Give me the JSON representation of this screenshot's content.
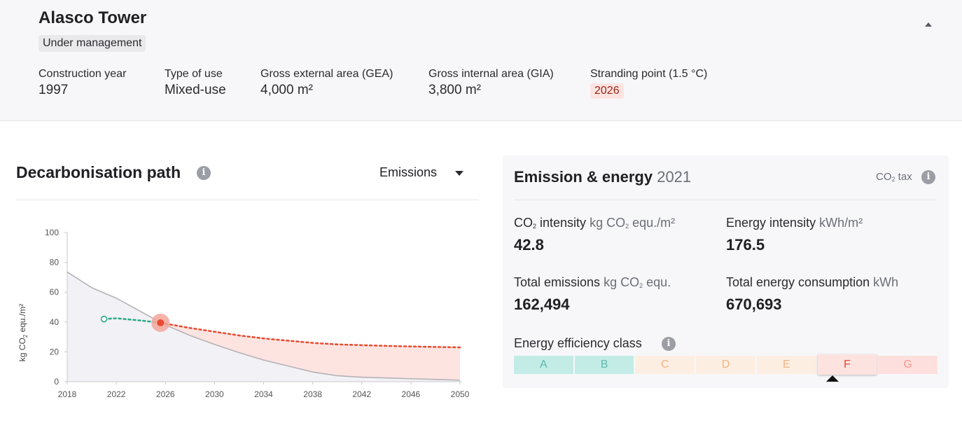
{
  "header": {
    "title": "Alasco Tower",
    "status": "Under management",
    "meta": [
      {
        "label": "Construction year",
        "value": "1997"
      },
      {
        "label": "Type of use",
        "value": "Mixed-use"
      },
      {
        "label": "Gross external area (GEA)",
        "value": "4,000 m²"
      },
      {
        "label": "Gross internal area (GIA)",
        "value": "3,800 m²"
      },
      {
        "label": "Stranding point (1.5 °C)",
        "value": "2026"
      }
    ]
  },
  "decarb": {
    "title": "Decarbonisation path",
    "dropdown_value": "Emissions"
  },
  "chart_data": {
    "type": "line",
    "ylabel_parts": {
      "pre": "kg CO",
      "sub": "2",
      "post": " equ./m²"
    },
    "xlim": [
      2018,
      2050
    ],
    "ylim": [
      0,
      100
    ],
    "x_ticks": [
      2018,
      2022,
      2026,
      2030,
      2034,
      2038,
      2042,
      2046,
      2050
    ],
    "y_ticks": [
      0,
      20,
      40,
      60,
      80,
      100
    ],
    "grid": false,
    "series": [
      {
        "color": "#b5b1b6",
        "points": [
          [
            2018,
            73.5
          ],
          [
            2020,
            63
          ],
          [
            2022,
            56
          ],
          [
            2024,
            47
          ],
          [
            2026,
            38
          ],
          [
            2028,
            31
          ],
          [
            2030,
            25
          ],
          [
            2032,
            19.5
          ],
          [
            2034,
            14.5
          ],
          [
            2036,
            10.5
          ],
          [
            2038,
            6.5
          ],
          [
            2040,
            4
          ],
          [
            2042,
            3
          ],
          [
            2044,
            2.5
          ],
          [
            2046,
            2
          ],
          [
            2048,
            1.5
          ],
          [
            2050,
            1
          ]
        ]
      },
      {
        "color": "#2aa88a",
        "dashed": true,
        "points": [
          [
            2021,
            42
          ],
          [
            2022,
            42.5
          ],
          [
            2024,
            41
          ],
          [
            2025.6,
            39.5
          ]
        ]
      },
      {
        "color": "#e8492f",
        "dashed": true,
        "points": [
          [
            2025.6,
            39.5
          ],
          [
            2028,
            36
          ],
          [
            2030,
            33.5
          ],
          [
            2032,
            31
          ],
          [
            2034,
            29
          ],
          [
            2036,
            27.5
          ],
          [
            2038,
            26
          ],
          [
            2040,
            25
          ],
          [
            2042,
            24.5
          ],
          [
            2044,
            24
          ],
          [
            2046,
            23.6
          ],
          [
            2048,
            23.3
          ],
          [
            2050,
            23
          ]
        ]
      }
    ],
    "markers": {
      "start": [
        2021,
        42
      ],
      "stranding": [
        2025.6,
        39.5
      ]
    }
  },
  "panel": {
    "title": "Emission & energy",
    "year": "2021",
    "co2tax_pre": "CO",
    "co2tax_sub": "2",
    "co2tax_post": " tax",
    "co2_intensity": {
      "pre": "CO",
      "sub": "2",
      "post": " intensity",
      "unit_pre": "kg CO",
      "unit_sub": "2",
      "unit_post": " equ./m²",
      "value": "42.8"
    },
    "energy_intensity": {
      "label": "Energy intensity",
      "unit": "kWh/m²",
      "value": "176.5"
    },
    "total_emissions": {
      "label": "Total emissions",
      "unit_pre": "kg CO",
      "unit_sub": "2",
      "unit_post": " equ.",
      "value": "162,494"
    },
    "total_energy": {
      "label": "Total energy consumption",
      "unit": "kWh",
      "value": "670,693"
    },
    "eec_label": "Energy efficiency class",
    "classes": [
      {
        "label": "A",
        "bg": "#c3ece6",
        "fg": "#5fb8ad"
      },
      {
        "label": "B",
        "bg": "#c3ece6",
        "fg": "#5fb8ad"
      },
      {
        "label": "C",
        "bg": "#fdeee2",
        "fg": "#f0b487"
      },
      {
        "label": "D",
        "bg": "#fdeee2",
        "fg": "#f0b487"
      },
      {
        "label": "E",
        "bg": "#fdeee2",
        "fg": "#f0b487"
      },
      {
        "label": "F",
        "bg": "#fde3e0",
        "fg": "#e8492f",
        "active": true
      },
      {
        "label": "G",
        "bg": "#fde0dd",
        "fg": "#f19a8d"
      }
    ]
  }
}
